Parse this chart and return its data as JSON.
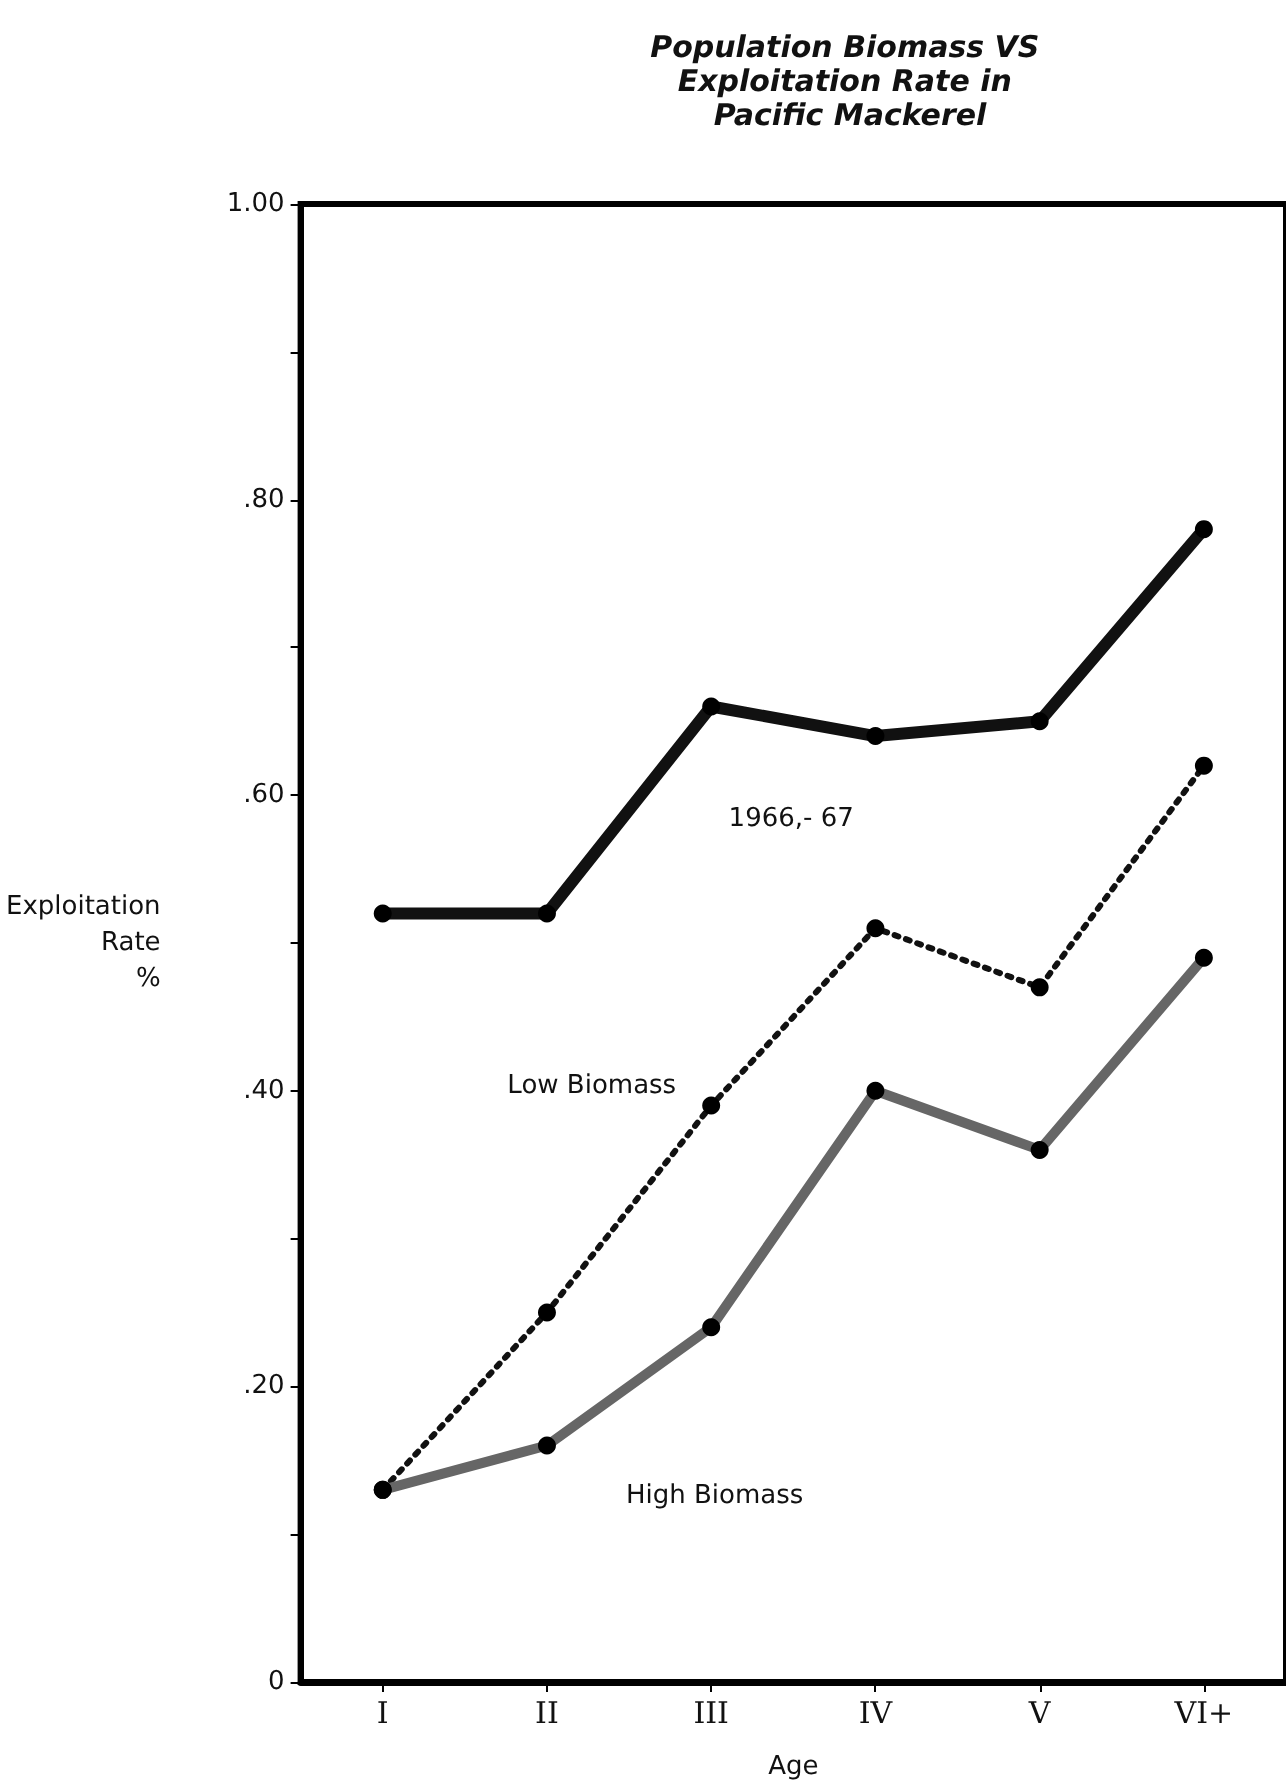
{
  "chart_data": {
    "type": "line",
    "title": "Population Biomass VS Exploitation Rate in Pacific Mackerel",
    "xlabel": "Age",
    "ylabel": "Exploitation Rate %",
    "categories": [
      "I",
      "II",
      "III",
      "IV",
      "V",
      "VI+"
    ],
    "series": [
      {
        "name": "1966,- 67",
        "color": "#111111",
        "line_style": "solid",
        "values": [
          0.52,
          0.52,
          0.66,
          0.64,
          0.65,
          0.78
        ]
      },
      {
        "name": "Low Biomass",
        "color": "#111111",
        "line_style": "dotted",
        "values": [
          0.13,
          0.25,
          0.39,
          0.51,
          0.47,
          0.62
        ]
      },
      {
        "name": "High Biomass",
        "color": "#666666",
        "line_style": "solid",
        "values": [
          0.13,
          0.16,
          0.24,
          0.4,
          0.36,
          0.49
        ]
      }
    ],
    "ylim": [
      0,
      1
    ],
    "yticks": [
      {
        "value": 0,
        "label": "0"
      },
      {
        "value": 0.1,
        "label": null
      },
      {
        "value": 0.2,
        "label": ".20"
      },
      {
        "value": 0.3,
        "label": null
      },
      {
        "value": 0.4,
        "label": ".40"
      },
      {
        "value": 0.5,
        "label": null
      },
      {
        "value": 0.6,
        "label": ".60"
      },
      {
        "value": 0.7,
        "label": null
      },
      {
        "value": 0.8,
        "label": ".80"
      },
      {
        "value": 0.9,
        "label": null
      },
      {
        "value": 1,
        "label": "1.00"
      }
    ],
    "grid": false,
    "legend": false,
    "marker": "circle"
  }
}
